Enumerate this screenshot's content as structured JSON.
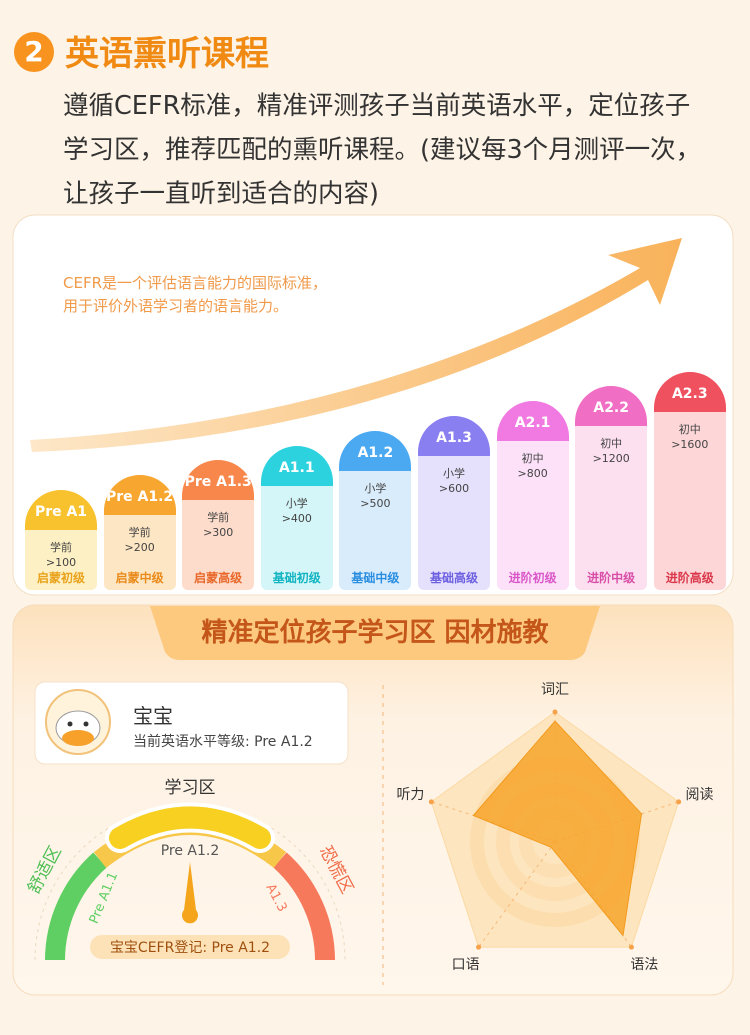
{
  "header": {
    "number": "2",
    "title": "英语熏听课程",
    "description": "遵循CEFR标准，精准评测孩子当前英语水平，定位孩子学习区，推荐匹配的熏听课程。(建议每3个月测评一次，让孩子一直听到适合的内容)"
  },
  "levels_card": {
    "note": [
      "CEFR是一个评估语言能力的国际标准，",
      "用于评价外语学习者的语言能力。"
    ],
    "levels": [
      {
        "name": "Pre A1",
        "stage": "学前",
        "vocab": ">100",
        "group": "启蒙初级",
        "color": "#f7c22e",
        "light": "#fdf0c4",
        "dark": "#e9a21a"
      },
      {
        "name": "Pre A1.2",
        "stage": "学前",
        "vocab": ">200",
        "group": "启蒙中级",
        "color": "#f7a62f",
        "light": "#fde6c4",
        "dark": "#e98a1a"
      },
      {
        "name": "Pre A1.3",
        "stage": "学前",
        "vocab": ">300",
        "group": "启蒙高级",
        "color": "#f7874a",
        "light": "#fddccb",
        "dark": "#e8682a"
      },
      {
        "name": "A1.1",
        "stage": "小学",
        "vocab": ">400",
        "group": "基础初级",
        "color": "#2dd2df",
        "light": "#d4f6f8",
        "dark": "#13b4c2"
      },
      {
        "name": "A1.2",
        "stage": "小学",
        "vocab": ">500",
        "group": "基础中级",
        "color": "#4ba9f2",
        "light": "#d9ecfc",
        "dark": "#2a8ee0"
      },
      {
        "name": "A1.3",
        "stage": "小学",
        "vocab": ">600",
        "group": "基础高级",
        "color": "#8a7ff1",
        "light": "#e5e1fc",
        "dark": "#6d60e0"
      },
      {
        "name": "A2.1",
        "stage": "初中",
        "vocab": ">800",
        "group": "进阶初级",
        "color": "#f07ae2",
        "light": "#fde1f9",
        "dark": "#d958c8"
      },
      {
        "name": "A2.2",
        "stage": "初中",
        "vocab": ">1200",
        "group": "进阶中级",
        "color": "#f06ec4",
        "light": "#fde0f0",
        "dark": "#d84fa8"
      },
      {
        "name": "A2.3",
        "stage": "初中",
        "vocab": ">1600",
        "group": "进阶高级",
        "color": "#f0515f",
        "light": "#fdd6d8",
        "dark": "#d9384a"
      }
    ]
  },
  "position_card": {
    "banner": "精准定位孩子学习区 因材施教",
    "profile": {
      "name": "宝宝",
      "level": "当前英语水平等级: Pre A1.2"
    },
    "gauge": {
      "top_label": "学习区",
      "center_label": "Pre A1.2",
      "left_zone": "舒适区",
      "right_zone": "恐慌区",
      "left_level": "Pre A1.1",
      "right_level": "A1.3",
      "badge": "宝宝CEFR登记: Pre A1.2"
    },
    "radar": {
      "axes": [
        "词汇",
        "阅读",
        "语法",
        "口语",
        "听力"
      ],
      "values": [
        93,
        70,
        89,
        5,
        66
      ],
      "rlim": [
        0,
        100
      ],
      "color": "#f7a42a"
    }
  }
}
